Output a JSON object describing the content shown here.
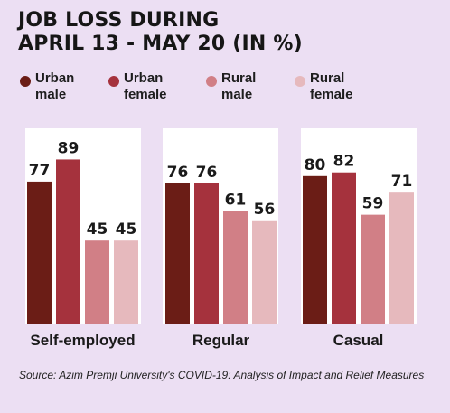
{
  "title": {
    "line1": "JOB LOSS DURING",
    "line2": "APRIL 13 - MAY 20 (IN %)"
  },
  "legend": [
    {
      "line1": "Urban",
      "line2": "male",
      "color": "#6b1d16"
    },
    {
      "line1": "Urban",
      "line2": "female",
      "color": "#a5323d"
    },
    {
      "line1": "Rural",
      "line2": "male",
      "color": "#d17f86"
    },
    {
      "line1": "Rural",
      "line2": "female",
      "color": "#e6b9bd"
    }
  ],
  "source": "Source: Azim Premji University's COVID-19: Analysis of Impact and Relief Measures",
  "chart_data": {
    "type": "bar",
    "categories": [
      "Self-employed",
      "Regular",
      "Casual"
    ],
    "series": [
      {
        "name": "Urban male",
        "values": [
          77,
          76,
          80
        ]
      },
      {
        "name": "Urban female",
        "values": [
          89,
          76,
          82
        ]
      },
      {
        "name": "Rural male",
        "values": [
          45,
          61,
          59
        ]
      },
      {
        "name": "Rural female",
        "values": [
          45,
          56,
          71
        ]
      }
    ],
    "ylim": [
      0,
      100
    ],
    "grid": false,
    "legend_position": "top",
    "data_labels": true
  }
}
